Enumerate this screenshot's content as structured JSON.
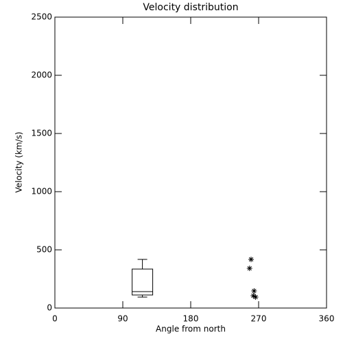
{
  "chart_data": {
    "type": "box",
    "title": "Velocity distribution",
    "x_label": "Angle from north",
    "y_label": "Velocity (km/s)",
    "xlim": [
      0,
      360
    ],
    "xticks": [
      0,
      90,
      180,
      270,
      360
    ],
    "ylim": [
      0,
      2500
    ],
    "yticks": [
      0,
      500,
      1000,
      1500,
      2000,
      2500
    ],
    "color": "#000000",
    "boxes": [
      {
        "x": 116,
        "whisker_low": 94,
        "q1": 112,
        "median": 141,
        "q3": 335,
        "whisker_high": 418
      }
    ],
    "points": {
      "marker": "asterisk",
      "x": [
        260,
        258,
        264,
        263,
        266
      ],
      "y": [
        418,
        341,
        147,
        106,
        94
      ]
    }
  }
}
